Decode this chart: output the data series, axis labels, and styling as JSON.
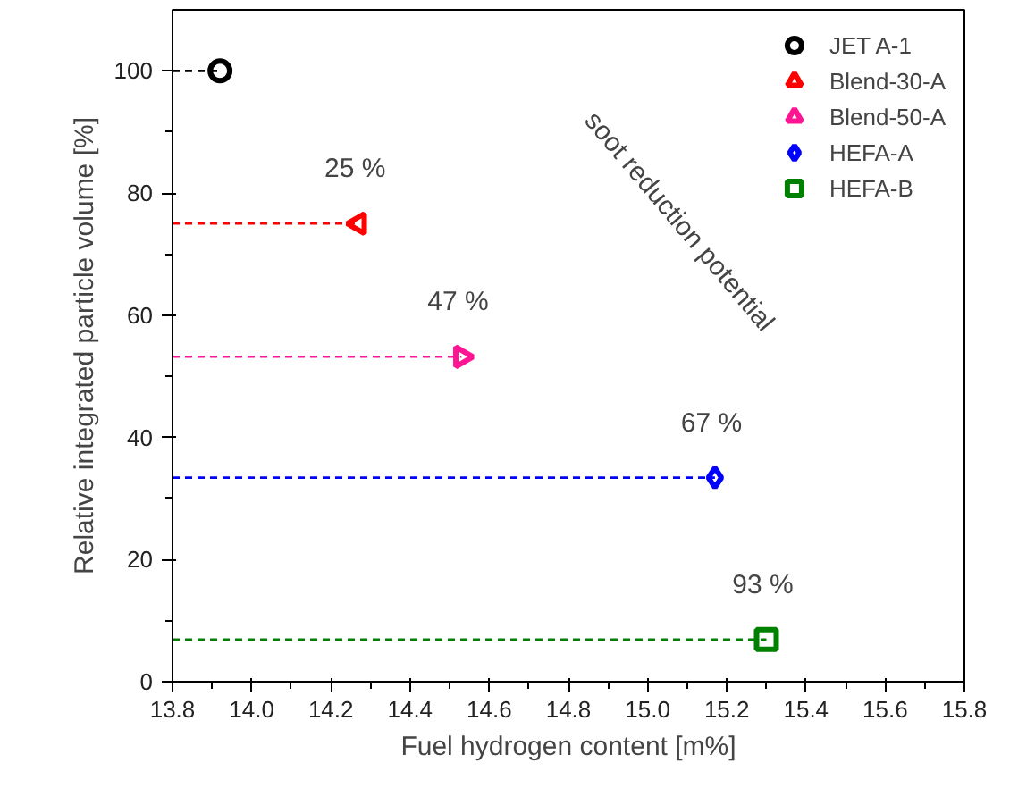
{
  "chart_data": {
    "type": "scatter",
    "xlabel": "Fuel hydrogen content [m%]",
    "ylabel": "Relative integrated particle volume [%]",
    "xlim": [
      13.8,
      15.8
    ],
    "xticks": [
      13.8,
      {
        "value": 14,
        "label": "14.0"
      },
      14.2,
      14.4,
      14.6,
      14.8,
      {
        "value": 15,
        "label": "15.0"
      },
      15.2,
      15.4,
      15.6,
      15.8
    ],
    "ylim": [
      0,
      110
    ],
    "yticks": [
      0,
      20,
      40,
      60,
      80,
      100
    ],
    "series": [
      {
        "name": "JET A-1",
        "color": "#000000",
        "marker": "circle",
        "x": [
          13.92
        ],
        "values": [
          100
        ],
        "xerrors": [
          [
            13.8,
            13.92
          ]
        ]
      },
      {
        "name": "Blend-30-A",
        "color": "#ff0000",
        "marker": "triangle_left",
        "x": [
          14.27
        ],
        "values": [
          75
        ],
        "xerrors": [
          [
            13.8,
            14.27
          ]
        ]
      },
      {
        "name": "Blend-50-A",
        "color": "#ff1493",
        "marker": "triangle_right",
        "x": [
          14.53
        ],
        "values": [
          53.2
        ],
        "xerrors": [
          [
            13.8,
            14.53
          ]
        ]
      },
      {
        "name": "HEFA-A",
        "color": "#0000ff",
        "marker": "diamond",
        "x": [
          15.17
        ],
        "values": [
          33.4
        ],
        "xerrors": [
          [
            13.8,
            15.17
          ]
        ]
      },
      {
        "name": "HEFA-B",
        "color": "#008000",
        "marker": "square",
        "x": [
          15.3
        ],
        "values": [
          6.9
        ],
        "xerrors": [
          [
            13.8,
            15.3
          ]
        ]
      }
    ],
    "line_style": "dashed",
    "grid": false,
    "legend": "top right",
    "annotations": [
      {
        "text": "25 %",
        "x": 14.27,
        "y": 75
      },
      {
        "text": "47 %",
        "x": 14.53,
        "y": 53.2
      },
      {
        "text": "67 %",
        "x": 15.17,
        "y": 33.4
      },
      {
        "text": "93 %",
        "x": 15.3,
        "y": 6.9
      },
      "soot reduction potential"
    ]
  }
}
